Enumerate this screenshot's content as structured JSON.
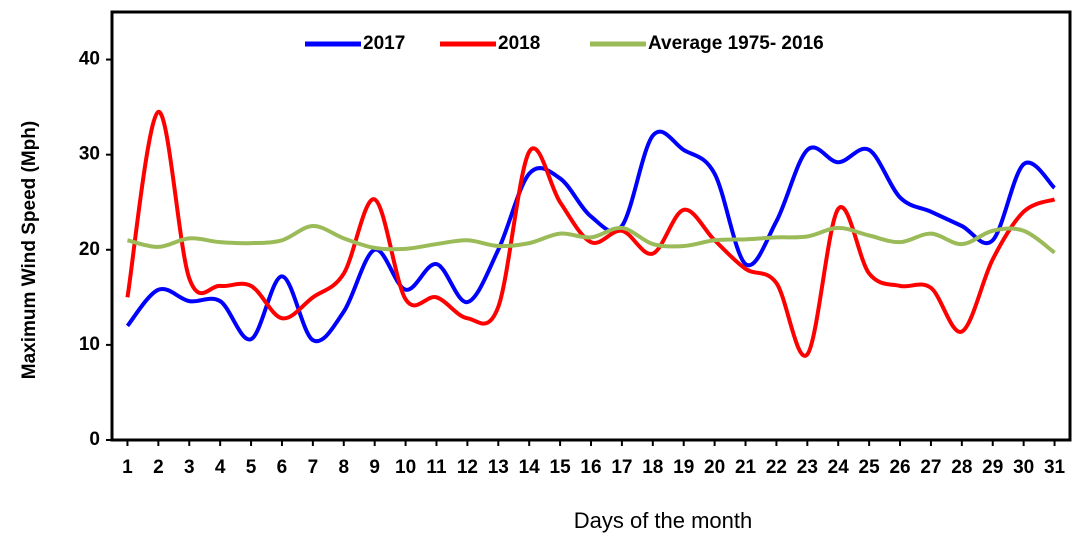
{
  "chart_data": {
    "type": "line",
    "y_label": "Maximum Wind Speed (Mph)",
    "x_label": "Days of the month",
    "x": [
      1,
      2,
      3,
      4,
      5,
      6,
      7,
      8,
      9,
      10,
      11,
      12,
      13,
      14,
      15,
      16,
      17,
      18,
      19,
      20,
      21,
      22,
      23,
      24,
      25,
      26,
      27,
      28,
      29,
      30,
      31
    ],
    "series": [
      {
        "name": "2017",
        "color": "#0000ff",
        "values": [
          12,
          15.8,
          14.6,
          14.6,
          10.6,
          17.2,
          10.5,
          13.5,
          20,
          15.8,
          18.5,
          14.5,
          20,
          28,
          27.5,
          23.5,
          22.5,
          32,
          30.5,
          28,
          18.5,
          23,
          30.5,
          29.2,
          30.5,
          25.5,
          24,
          22.5,
          21,
          29,
          26.5
        ]
      },
      {
        "name": "2018",
        "color": "#ff0000",
        "values": [
          15,
          34.5,
          17,
          16.2,
          16.2,
          12.8,
          15,
          17.5,
          25.3,
          14.8,
          15,
          12.8,
          14,
          30.3,
          25,
          20.8,
          22,
          19.6,
          24.2,
          21,
          18,
          16.5,
          9,
          24.3,
          17.5,
          16.2,
          16,
          11.4,
          19,
          24,
          25.3
        ]
      },
      {
        "name": "Average 1975- 2016",
        "color": "#9bbb59",
        "values": [
          21,
          20.3,
          21.2,
          20.8,
          20.7,
          21,
          22.5,
          21.2,
          20.2,
          20.1,
          20.6,
          21,
          20.4,
          20.7,
          21.7,
          21.3,
          22.3,
          20.6,
          20.4,
          21,
          21.1,
          21.3,
          21.4,
          22.3,
          21.5,
          20.8,
          21.7,
          20.6,
          22,
          22,
          19.7
        ]
      }
    ],
    "xlim": [
      0.5,
      31.5
    ],
    "xticks": [
      1,
      2,
      3,
      4,
      5,
      6,
      7,
      8,
      9,
      10,
      11,
      12,
      13,
      14,
      15,
      16,
      17,
      18,
      19,
      20,
      21,
      22,
      23,
      24,
      25,
      26,
      27,
      28,
      29,
      30,
      31
    ],
    "ylim": [
      0,
      45
    ],
    "yticks": [
      0,
      10,
      20,
      30,
      40
    ],
    "legend": "top"
  }
}
